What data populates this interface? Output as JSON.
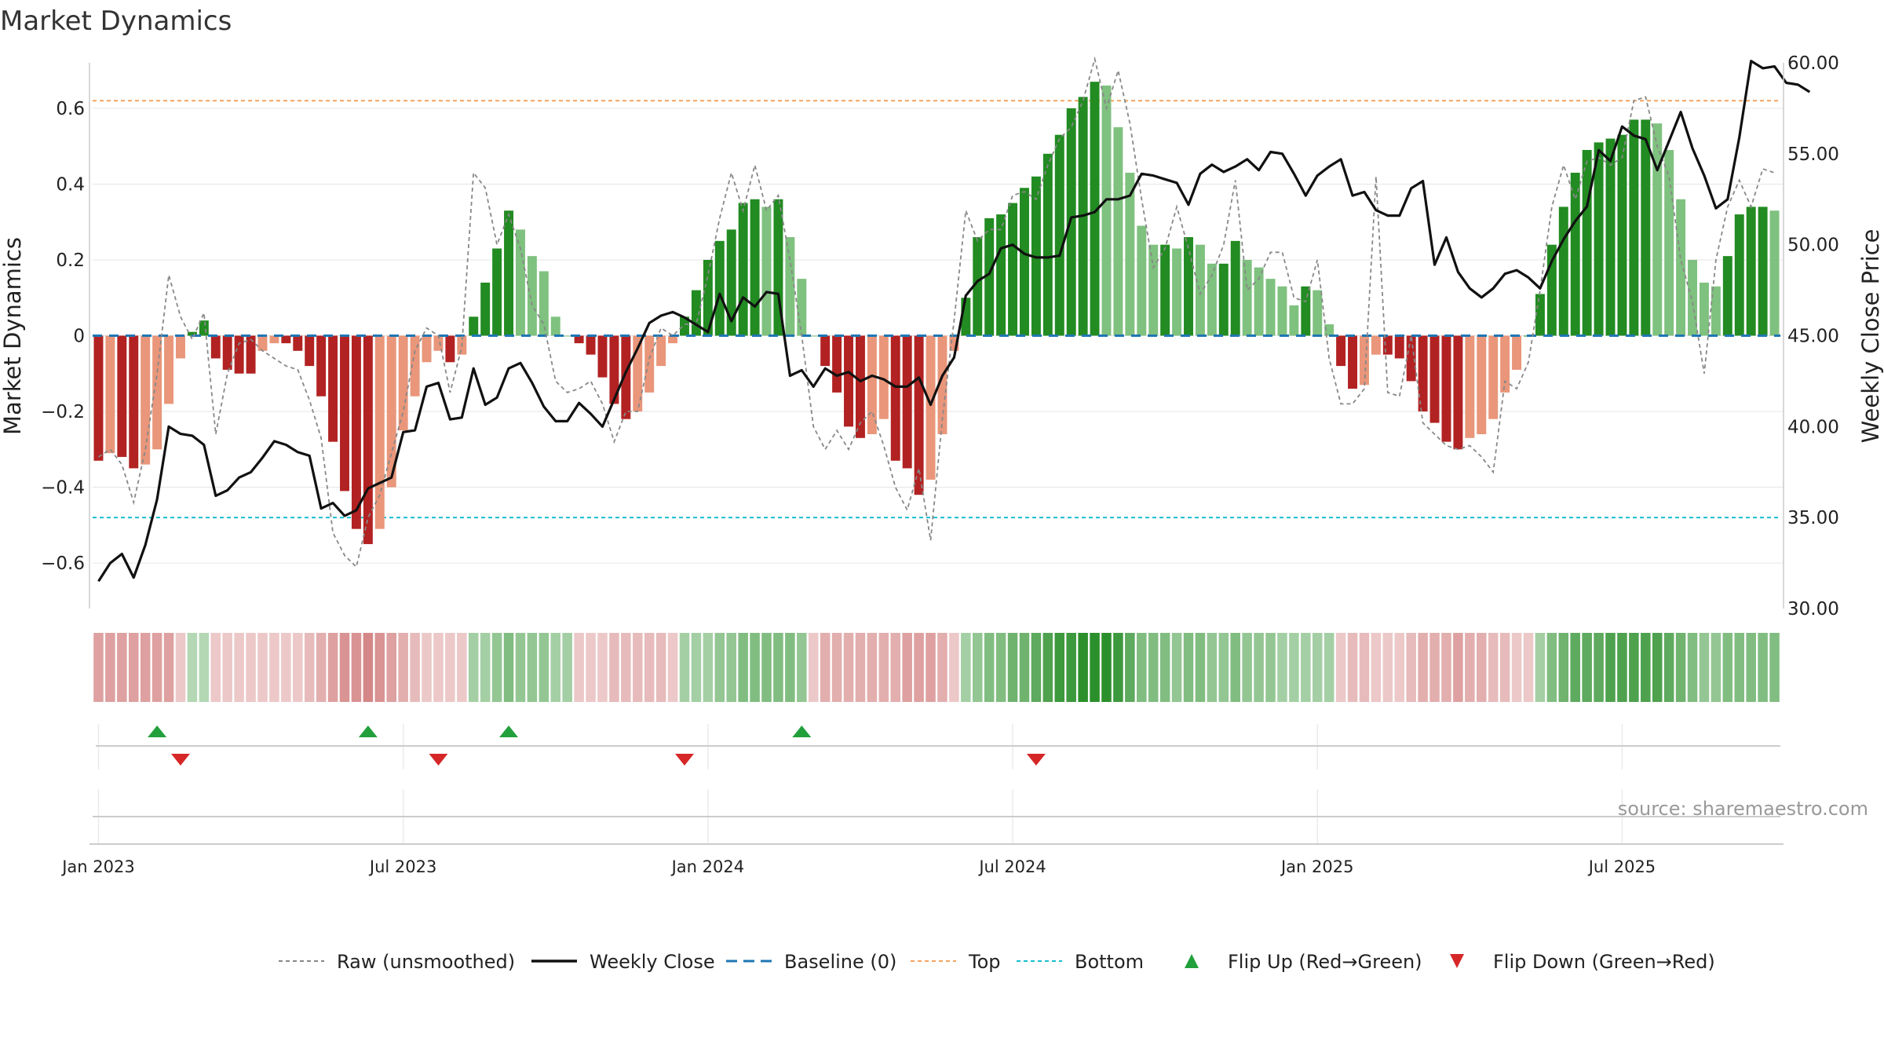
{
  "chart_data": {
    "type": "bar",
    "title": "Market Dynamics",
    "ylabel_left": "Market Dynamics",
    "ylabel_right": "Weekly Close Price",
    "source": "source: sharemaestro.com",
    "ylim_left": [
      -0.72,
      0.72
    ],
    "ylim_right": [
      30,
      60
    ],
    "yticks_left": [
      {
        "v": 0.6,
        "label": "0.6"
      },
      {
        "v": 0.4,
        "label": "0.4"
      },
      {
        "v": 0.2,
        "label": "0.2"
      },
      {
        "v": 0,
        "label": "0"
      },
      {
        "v": -0.2,
        "label": "−0.2"
      },
      {
        "v": -0.4,
        "label": "−0.4"
      },
      {
        "v": -0.6,
        "label": "−0.6"
      }
    ],
    "yticks_right": [
      {
        "v": 60,
        "label": "60.00"
      },
      {
        "v": 55,
        "label": "55.00"
      },
      {
        "v": 50,
        "label": "50.00"
      },
      {
        "v": 45,
        "label": "45.00"
      },
      {
        "v": 40,
        "label": "40.00"
      },
      {
        "v": 35,
        "label": "35.00"
      },
      {
        "v": 30,
        "label": "30.00"
      }
    ],
    "xticks": [
      {
        "week": 1,
        "label": "Jan 2023"
      },
      {
        "week": 27,
        "label": "Jul 2023"
      },
      {
        "week": 53,
        "label": "Jan 2024"
      },
      {
        "week": 79,
        "label": "Jul 2024"
      },
      {
        "week": 105,
        "label": "Jan 2025"
      },
      {
        "week": 131,
        "label": "Jul 2025"
      }
    ],
    "first_week": "2022-12-26",
    "top_level": 0.62,
    "bottom_level": -0.48,
    "baseline": 0,
    "grid": true,
    "legend_position": "bottom-center",
    "colors": {
      "strong_green": "#228b22",
      "light_green": "#7fc17f",
      "strong_red": "#b22222",
      "light_red": "#e9967a",
      "price": "#111111",
      "raw": "#888888",
      "baseline": "#1f77b4",
      "top": "#f4a460",
      "bottom": "#17becf",
      "flip_up": "#22a03c",
      "flip_down": "#d62728"
    },
    "legend": [
      {
        "key": "raw",
        "label": "Raw (unsmoothed)"
      },
      {
        "key": "close",
        "label": "Weekly Close"
      },
      {
        "key": "baseline",
        "label": "Baseline (0)"
      },
      {
        "key": "top",
        "label": "Top"
      },
      {
        "key": "bottom",
        "label": "Bottom"
      },
      {
        "key": "flip_up",
        "label": "Flip Up (Red→Green)"
      },
      {
        "key": "flip_down",
        "label": "Flip Down (Green→Red)"
      }
    ],
    "dynamics": [
      -0.33,
      -0.31,
      -0.32,
      -0.35,
      -0.34,
      -0.3,
      -0.18,
      -0.06,
      0.01,
      0.04,
      -0.06,
      -0.09,
      -0.1,
      -0.1,
      -0.04,
      -0.02,
      -0.02,
      -0.04,
      -0.08,
      -0.16,
      -0.28,
      -0.41,
      -0.51,
      -0.55,
      -0.51,
      -0.4,
      -0.25,
      -0.16,
      -0.07,
      -0.04,
      -0.07,
      -0.05,
      0.05,
      0.14,
      0.23,
      0.33,
      0.28,
      0.21,
      0.17,
      0.05,
      0.0,
      -0.02,
      -0.05,
      -0.11,
      -0.18,
      -0.22,
      -0.2,
      -0.15,
      -0.08,
      -0.02,
      0.05,
      0.12,
      0.2,
      0.25,
      0.28,
      0.35,
      0.36,
      0.34,
      0.36,
      0.26,
      0.15,
      0.0,
      -0.08,
      -0.15,
      -0.24,
      -0.27,
      -0.26,
      -0.22,
      -0.33,
      -0.35,
      -0.42,
      -0.38,
      -0.26,
      -0.04,
      0.1,
      0.26,
      0.31,
      0.32,
      0.35,
      0.39,
      0.42,
      0.48,
      0.53,
      0.6,
      0.63,
      0.67,
      0.66,
      0.55,
      0.43,
      0.29,
      0.24,
      0.24,
      0.23,
      0.26,
      0.24,
      0.19,
      0.19,
      0.25,
      0.2,
      0.18,
      0.15,
      0.13,
      0.08,
      0.13,
      0.12,
      0.03,
      -0.08,
      -0.14,
      -0.13,
      -0.05,
      -0.05,
      -0.06,
      -0.12,
      -0.2,
      -0.23,
      -0.28,
      -0.3,
      -0.27,
      -0.26,
      -0.22,
      -0.15,
      -0.09,
      0.0,
      0.11,
      0.24,
      0.34,
      0.43,
      0.49,
      0.51,
      0.52,
      0.53,
      0.57,
      0.57,
      0.56,
      0.49,
      0.36,
      0.2,
      0.14,
      0.13,
      0.21,
      0.32,
      0.34,
      0.34,
      0.33
    ],
    "raw": [
      -0.32,
      -0.3,
      -0.34,
      -0.44,
      -0.3,
      -0.1,
      0.16,
      0.05,
      -0.01,
      0.06,
      -0.26,
      -0.1,
      -0.02,
      -0.01,
      -0.04,
      -0.06,
      -0.08,
      -0.09,
      -0.17,
      -0.27,
      -0.52,
      -0.58,
      -0.61,
      -0.48,
      -0.42,
      -0.31,
      -0.2,
      -0.04,
      0.02,
      0.0,
      -0.15,
      -0.03,
      0.43,
      0.39,
      0.24,
      0.32,
      0.23,
      0.08,
      0.03,
      -0.12,
      -0.15,
      -0.14,
      -0.12,
      -0.18,
      -0.28,
      -0.2,
      -0.2,
      -0.06,
      0.02,
      0.0,
      0.03,
      0.03,
      0.16,
      0.31,
      0.43,
      0.33,
      0.45,
      0.33,
      0.37,
      0.2,
      0.0,
      -0.24,
      -0.3,
      -0.25,
      -0.3,
      -0.23,
      -0.2,
      -0.29,
      -0.4,
      -0.46,
      -0.35,
      -0.54,
      -0.22,
      0.04,
      0.33,
      0.25,
      0.28,
      0.28,
      0.37,
      0.38,
      0.36,
      0.45,
      0.52,
      0.55,
      0.62,
      0.73,
      0.6,
      0.7,
      0.56,
      0.36,
      0.18,
      0.23,
      0.34,
      0.23,
      0.11,
      0.16,
      0.24,
      0.41,
      0.12,
      0.15,
      0.22,
      0.22,
      0.1,
      0.09,
      0.2,
      -0.06,
      -0.18,
      -0.18,
      -0.14,
      0.42,
      -0.15,
      -0.16,
      0.0,
      -0.23,
      -0.26,
      -0.29,
      -0.3,
      -0.29,
      -0.32,
      -0.36,
      -0.12,
      -0.14,
      -0.07,
      0.12,
      0.34,
      0.45,
      0.36,
      0.46,
      0.47,
      0.45,
      0.47,
      0.62,
      0.63,
      0.5,
      0.42,
      0.2,
      0.09,
      -0.1,
      0.2,
      0.34,
      0.41,
      0.34,
      0.44,
      0.43
    ],
    "close": [
      31.5,
      32.5,
      33.0,
      31.7,
      33.5,
      36.0,
      40.0,
      39.6,
      39.5,
      39.0,
      36.2,
      36.5,
      37.2,
      37.5,
      38.3,
      39.2,
      39.0,
      38.6,
      38.4,
      35.5,
      35.8,
      35.1,
      35.4,
      36.6,
      36.9,
      37.2,
      39.7,
      39.8,
      42.2,
      42.4,
      40.4,
      40.5,
      43.2,
      41.2,
      41.6,
      43.2,
      43.5,
      42.4,
      41.1,
      40.3,
      40.3,
      41.3,
      40.7,
      40.0,
      41.5,
      43.0,
      44.3,
      45.7,
      46.1,
      46.3,
      46.0,
      45.6,
      45.2,
      47.3,
      45.8,
      47.1,
      46.6,
      47.4,
      47.3,
      42.8,
      43.1,
      42.2,
      43.2,
      42.8,
      43.0,
      42.5,
      42.8,
      42.6,
      42.2,
      42.2,
      42.7,
      41.2,
      42.8,
      43.8,
      47.2,
      48.0,
      48.4,
      49.8,
      50.0,
      49.5,
      49.3,
      49.3,
      49.4,
      51.5,
      51.6,
      51.8,
      52.5,
      52.5,
      52.7,
      53.9,
      53.8,
      53.6,
      53.4,
      52.2,
      53.9,
      54.4,
      54.0,
      54.3,
      54.7,
      54.1,
      55.1,
      55.0,
      53.9,
      52.7,
      53.8,
      54.3,
      54.7,
      52.7,
      52.9,
      51.9,
      51.6,
      51.6,
      53.1,
      53.5,
      48.9,
      50.4,
      48.5,
      47.6,
      47.1,
      47.6,
      48.4,
      48.6,
      48.2,
      47.6,
      49.1,
      50.3,
      51.3,
      52.1,
      55.2,
      54.6,
      56.5,
      56.0,
      55.8,
      54.1,
      55.7,
      57.3,
      55.3,
      53.8,
      52.0,
      52.5,
      55.9,
      60.1,
      59.7,
      59.8,
      58.9,
      58.8,
      58.4
    ],
    "strength": [
      -0.5,
      -0.5,
      -0.5,
      -0.5,
      -0.5,
      -0.5,
      -0.5,
      -0.2,
      0.2,
      0.2,
      -0.2,
      -0.2,
      -0.2,
      -0.2,
      -0.2,
      -0.2,
      -0.2,
      -0.2,
      -0.3,
      -0.4,
      -0.5,
      -0.6,
      -0.6,
      -0.7,
      -0.6,
      -0.5,
      -0.4,
      -0.3,
      -0.2,
      -0.2,
      -0.2,
      -0.2,
      0.3,
      0.3,
      0.4,
      0.5,
      0.4,
      0.4,
      0.4,
      0.3,
      0.3,
      -0.2,
      -0.2,
      -0.2,
      -0.3,
      -0.3,
      -0.3,
      -0.3,
      -0.3,
      -0.2,
      0.3,
      0.3,
      0.3,
      0.4,
      0.4,
      0.5,
      0.5,
      0.5,
      0.5,
      0.5,
      0.4,
      -0.2,
      -0.4,
      -0.4,
      -0.4,
      -0.4,
      -0.4,
      -0.4,
      -0.4,
      -0.5,
      -0.5,
      -0.5,
      -0.4,
      -0.2,
      0.3,
      0.4,
      0.5,
      0.5,
      0.6,
      0.6,
      0.7,
      0.8,
      0.9,
      0.9,
      1.0,
      1.0,
      1.0,
      0.9,
      0.7,
      0.5,
      0.5,
      0.5,
      0.4,
      0.5,
      0.5,
      0.4,
      0.4,
      0.5,
      0.4,
      0.4,
      0.4,
      0.3,
      0.3,
      0.3,
      0.3,
      0.3,
      -0.2,
      -0.3,
      -0.3,
      -0.2,
      -0.2,
      -0.2,
      -0.3,
      -0.4,
      -0.4,
      -0.4,
      -0.5,
      -0.4,
      -0.4,
      -0.3,
      -0.3,
      -0.2,
      -0.2,
      0.3,
      0.5,
      0.6,
      0.7,
      0.7,
      0.7,
      0.8,
      0.8,
      0.8,
      0.8,
      0.8,
      0.7,
      0.6,
      0.5,
      0.4,
      0.4,
      0.5,
      0.5,
      0.5,
      0.5,
      0.5
    ],
    "flips_up": [
      6,
      24,
      36,
      61
    ],
    "flips_down": [
      8,
      30,
      51,
      81
    ]
  }
}
